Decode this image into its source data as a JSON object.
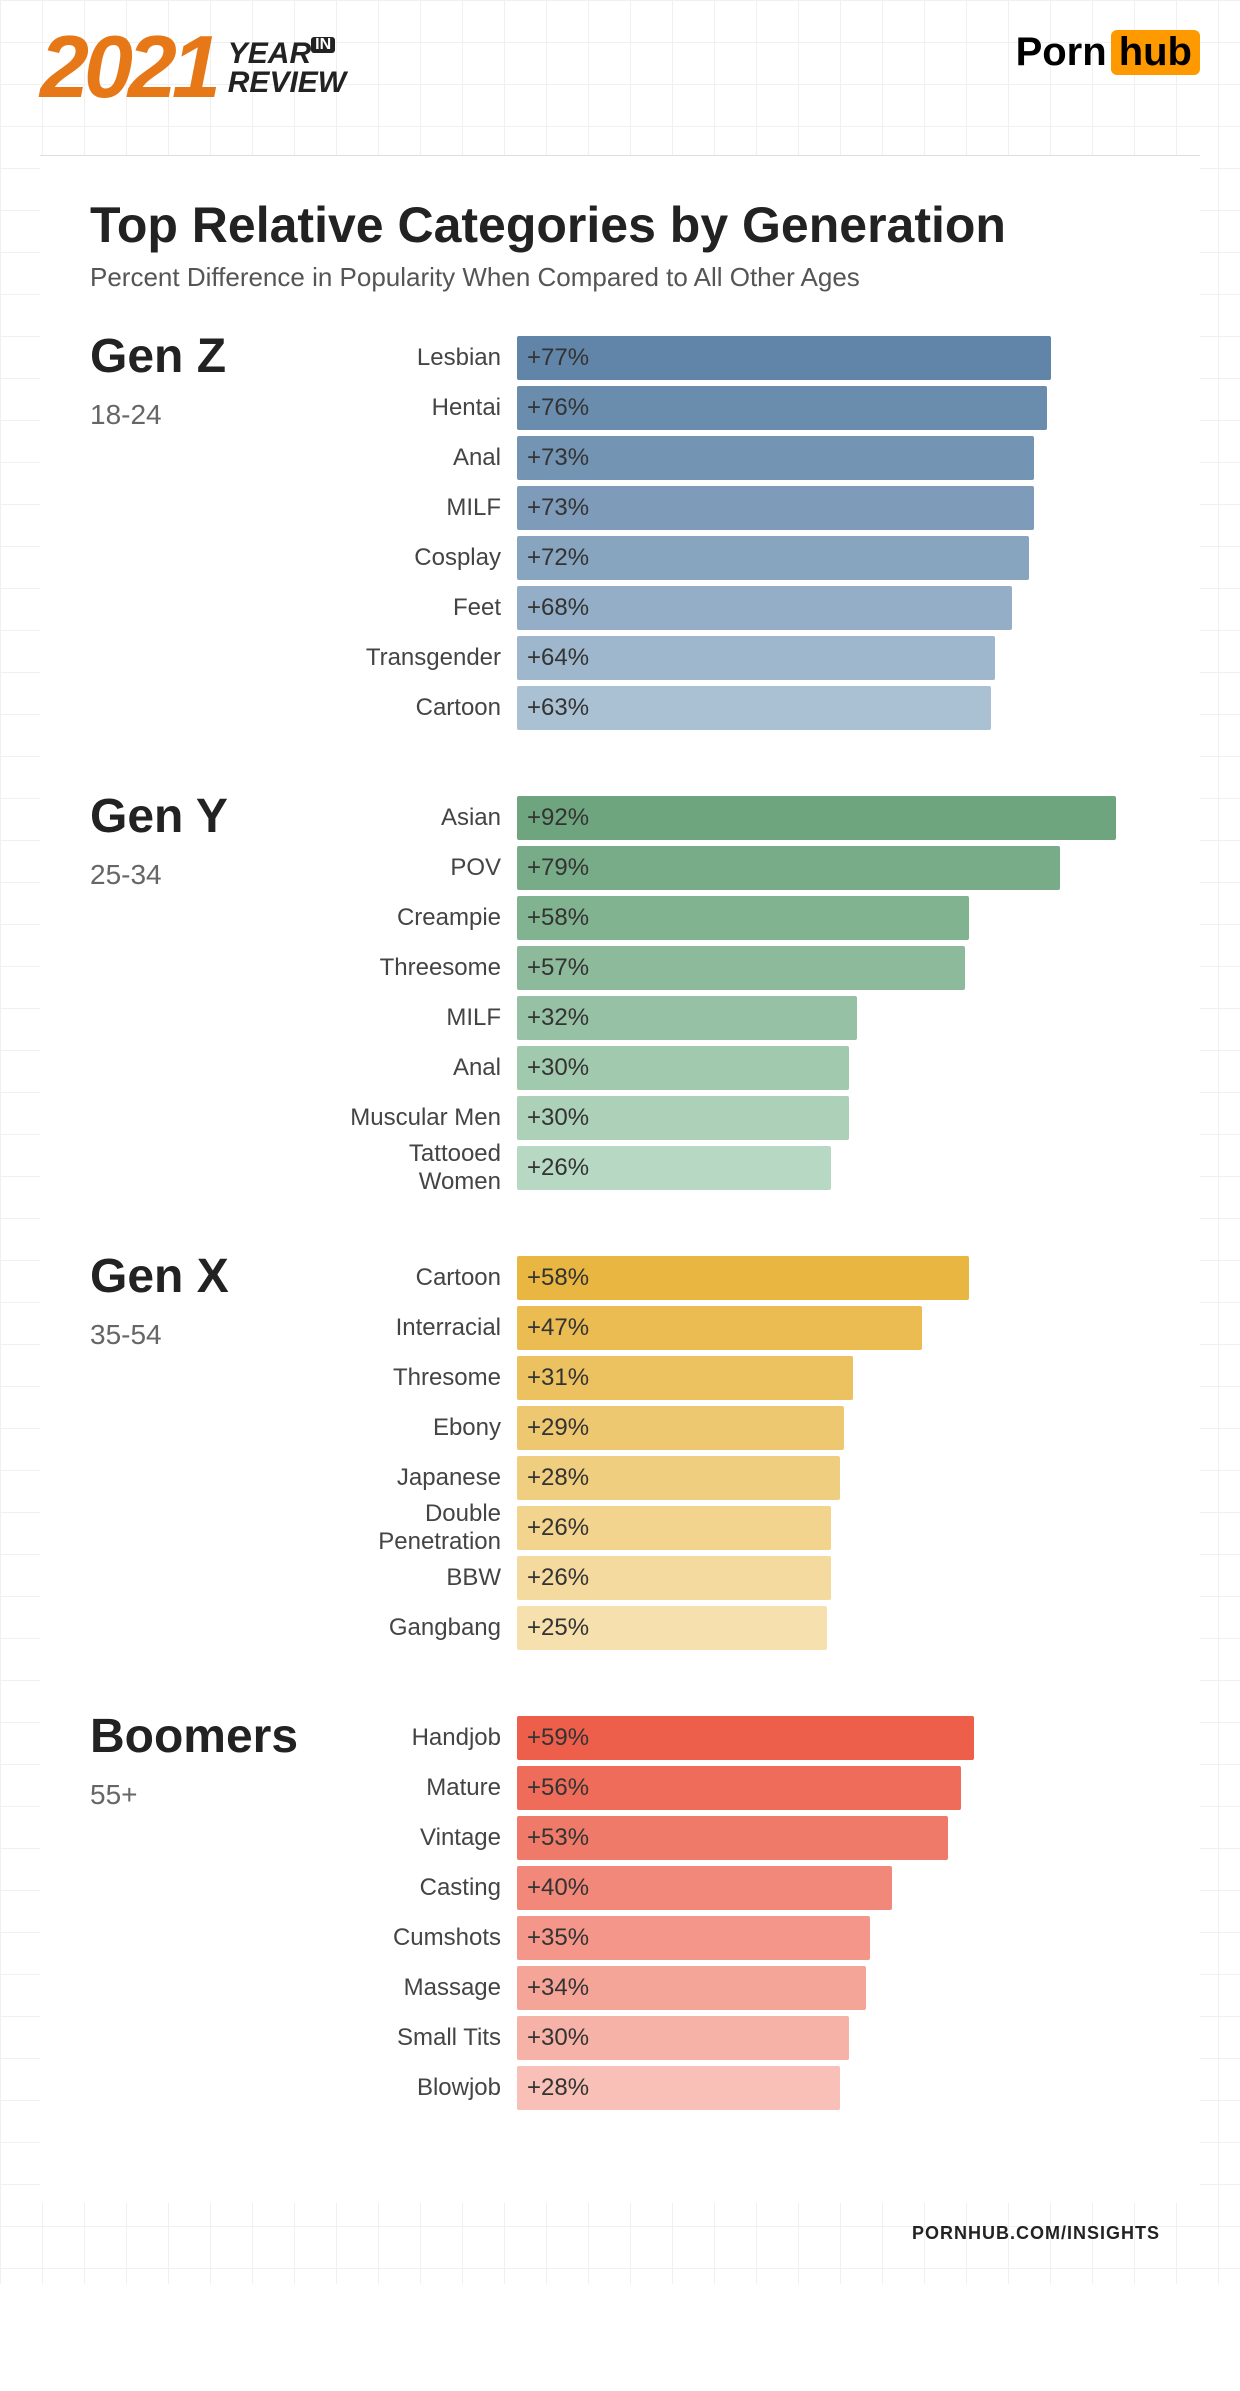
{
  "header": {
    "year": "2021",
    "year_label_line1": "YEAR",
    "year_label_in": "IN",
    "year_label_line2": "REVIEW",
    "logo_part1": "Porn",
    "logo_part2": "hub",
    "logo_accent_color": "#ff9900",
    "year_color": "#e67817"
  },
  "title": "Top Relative Categories by Generation",
  "subtitle": "Percent Difference in Popularity When Compared to All Other Ages",
  "bar_max_value": 100,
  "value_text_color": "#333333",
  "groups": [
    {
      "name": "Gen Z",
      "age": "18-24",
      "rows": [
        {
          "label": "Lesbian",
          "value": 77,
          "text": "+77%",
          "color": "#6185a8"
        },
        {
          "label": "Hentai",
          "value": 76,
          "text": "+76%",
          "color": "#6a8cad"
        },
        {
          "label": "Anal",
          "value": 73,
          "text": "+73%",
          "color": "#7494b3"
        },
        {
          "label": "MILF",
          "value": 73,
          "text": "+73%",
          "color": "#7e9cb9"
        },
        {
          "label": "Cosplay",
          "value": 72,
          "text": "+72%",
          "color": "#88a5bf"
        },
        {
          "label": "Feet",
          "value": 68,
          "text": "+68%",
          "color": "#93aec6"
        },
        {
          "label": "Transgender",
          "value": 64,
          "text": "+64%",
          "color": "#9eb7cd"
        },
        {
          "label": "Cartoon",
          "value": 63,
          "text": "+63%",
          "color": "#aac1d4"
        }
      ]
    },
    {
      "name": "Gen Y",
      "age": "25-34",
      "rows": [
        {
          "label": "Asian",
          "value": 92,
          "text": "+92%",
          "color": "#6ea57f"
        },
        {
          "label": "POV",
          "value": 79,
          "text": "+79%",
          "color": "#78ac88"
        },
        {
          "label": "Creampie",
          "value": 58,
          "text": "+58%",
          "color": "#82b391"
        },
        {
          "label": "Threesome",
          "value": 57,
          "text": "+57%",
          "color": "#8cba9a"
        },
        {
          "label": "MILF",
          "value": 32,
          "text": "+32%",
          "color": "#96c1a4"
        },
        {
          "label": "Anal",
          "value": 30,
          "text": "+30%",
          "color": "#a1c9ae"
        },
        {
          "label": "Muscular Men",
          "value": 30,
          "text": "+30%",
          "color": "#acd1b8"
        },
        {
          "label": "Tattooed Women",
          "value": 26,
          "text": "+26%",
          "color": "#b7d9c3"
        }
      ]
    },
    {
      "name": "Gen X",
      "age": "35-54",
      "rows": [
        {
          "label": "Cartoon",
          "value": 58,
          "text": "+58%",
          "color": "#e8b641"
        },
        {
          "label": "Interracial",
          "value": 47,
          "text": "+47%",
          "color": "#eabc51"
        },
        {
          "label": "Thresome",
          "value": 31,
          "text": "+31%",
          "color": "#ecc261"
        },
        {
          "label": "Ebony",
          "value": 29,
          "text": "+29%",
          "color": "#eec870"
        },
        {
          "label": "Japanese",
          "value": 28,
          "text": "+28%",
          "color": "#f0ce80"
        },
        {
          "label": "Double Penetration",
          "value": 26,
          "text": "+26%",
          "color": "#f2d48f"
        },
        {
          "label": "BBW",
          "value": 26,
          "text": "+26%",
          "color": "#f4da9e"
        },
        {
          "label": "Gangbang",
          "value": 25,
          "text": "+25%",
          "color": "#f6e0ad"
        }
      ]
    },
    {
      "name": "Boomers",
      "age": "55+",
      "rows": [
        {
          "label": "Handjob",
          "value": 59,
          "text": "+59%",
          "color": "#ed5e4b"
        },
        {
          "label": "Mature",
          "value": 56,
          "text": "+56%",
          "color": "#ef6c5a"
        },
        {
          "label": "Vintage",
          "value": 53,
          "text": "+53%",
          "color": "#f07a6a"
        },
        {
          "label": "Casting",
          "value": 40,
          "text": "+40%",
          "color": "#f28879"
        },
        {
          "label": "Cumshots",
          "value": 35,
          "text": "+35%",
          "color": "#f49689"
        },
        {
          "label": "Massage",
          "value": 34,
          "text": "+34%",
          "color": "#f5a498"
        },
        {
          "label": "Small Tits",
          "value": 30,
          "text": "+30%",
          "color": "#f7b2a8"
        },
        {
          "label": "Blowjob",
          "value": 28,
          "text": "+28%",
          "color": "#f9c0b7"
        }
      ]
    }
  ],
  "footer": "PORNHUB.COM/INSIGHTS"
}
